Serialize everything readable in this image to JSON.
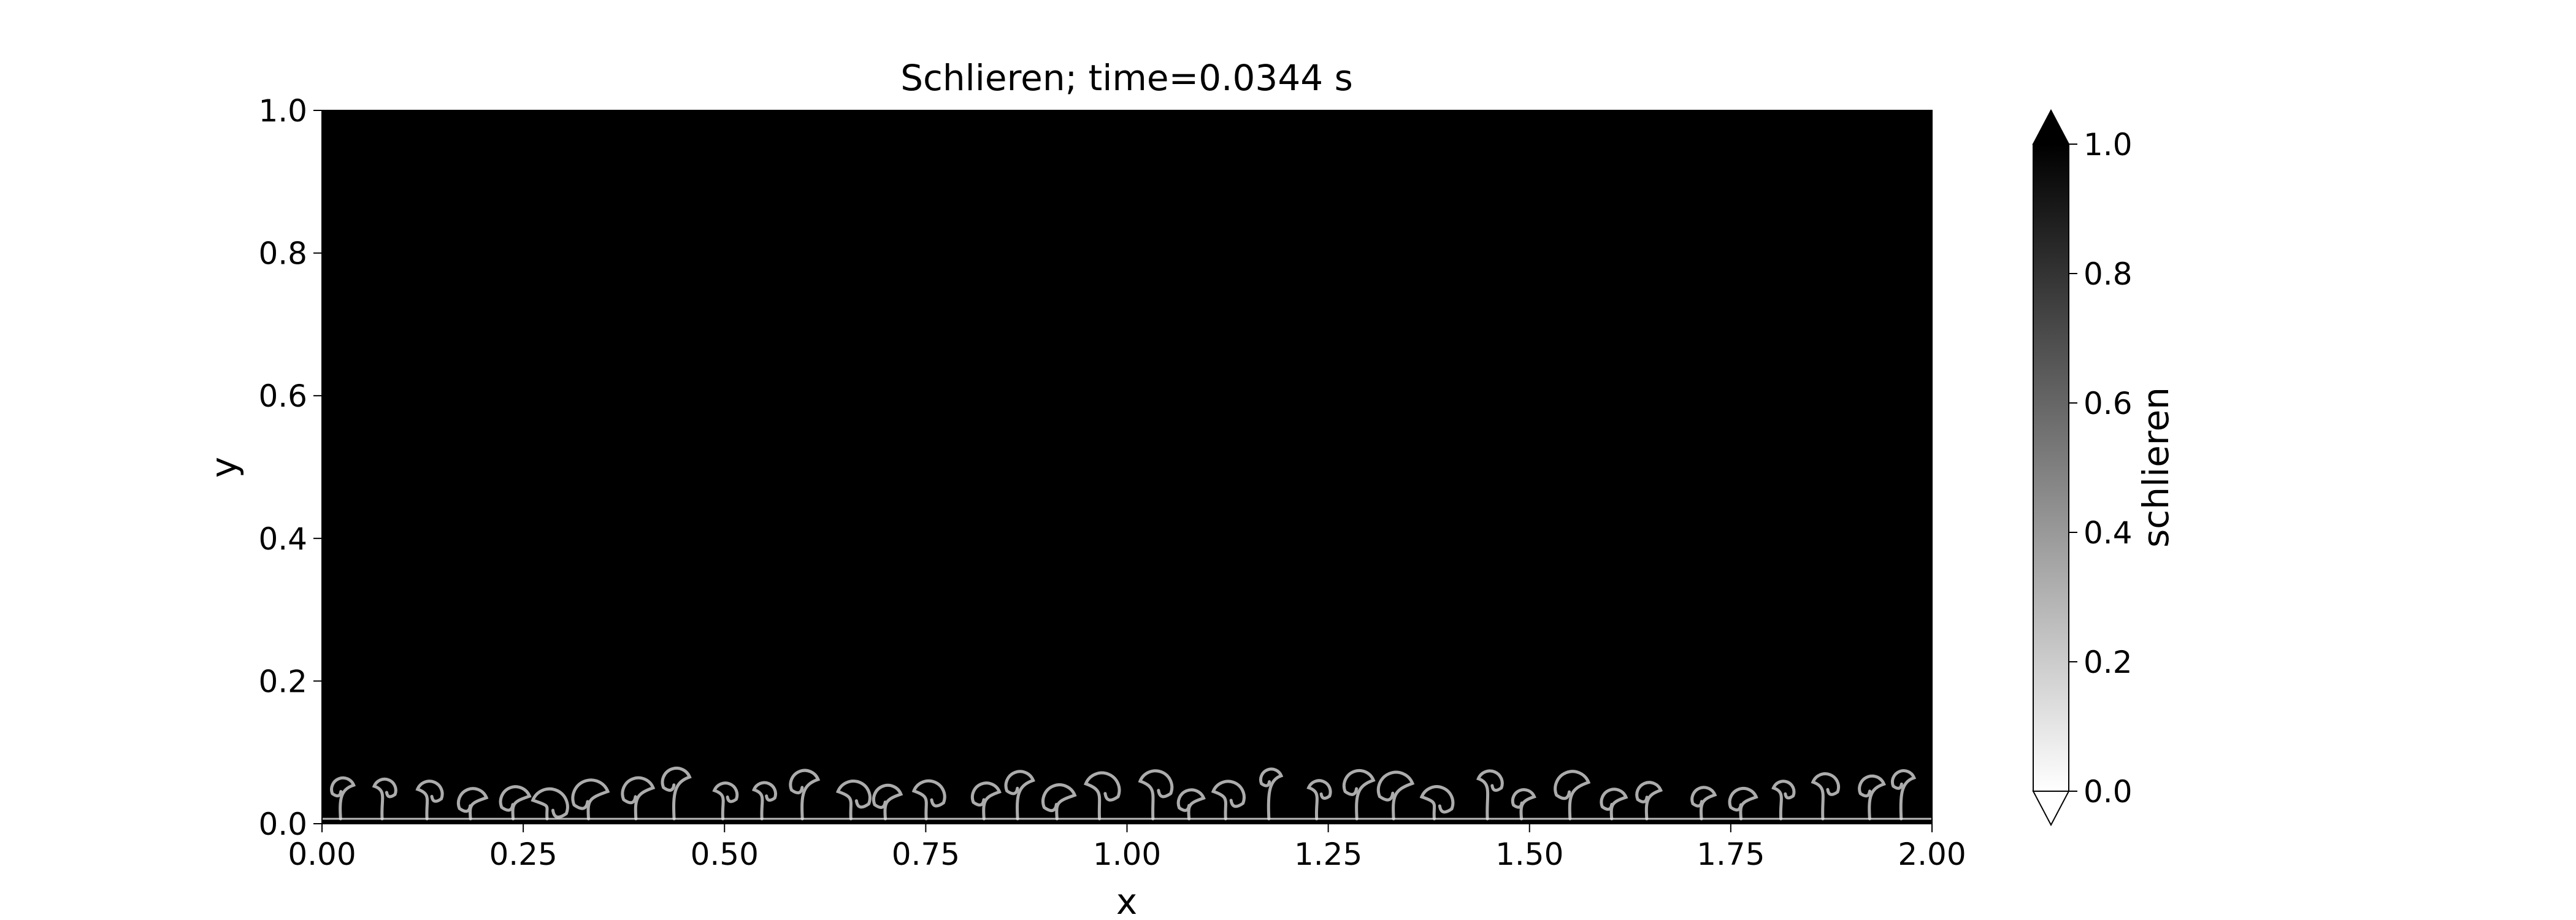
{
  "chart_data": {
    "type": "heatmap",
    "title": "Schlieren; time=0.0344 s",
    "xlabel": "x",
    "ylabel": "y",
    "xlim": [
      0.0,
      2.0
    ],
    "ylim": [
      0.0,
      1.0
    ],
    "x_ticks": [
      "0.00",
      "0.25",
      "0.50",
      "0.75",
      "1.00",
      "1.25",
      "1.50",
      "1.75",
      "2.00"
    ],
    "y_ticks": [
      "0.0",
      "0.2",
      "0.4",
      "0.6",
      "0.8",
      "1.0"
    ],
    "colormap": "gray_r",
    "colorbar": {
      "label": "schlieren",
      "range": [
        0.0,
        1.0
      ],
      "ticks": [
        "0.0",
        "0.2",
        "0.4",
        "0.6",
        "0.8",
        "1.0"
      ],
      "extend": "both"
    },
    "field_summary": {
      "background_value": 1.0,
      "mixing_layer_height": 0.07,
      "plume_count": 38,
      "plume_color": "#e6e6e6"
    },
    "grid": false
  }
}
